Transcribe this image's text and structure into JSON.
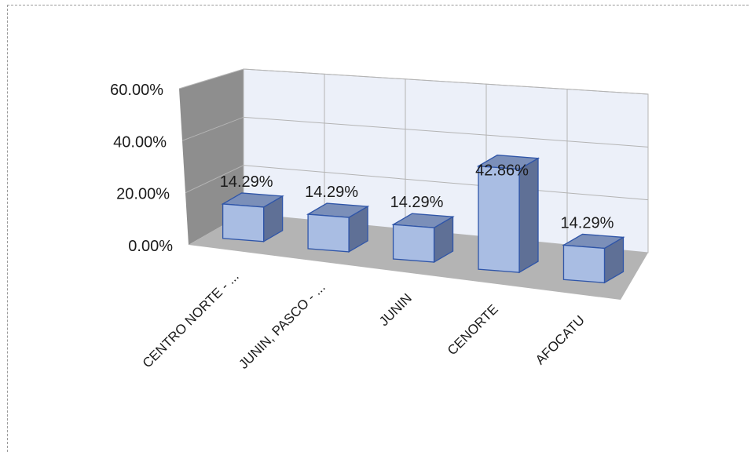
{
  "chart_data": {
    "type": "bar",
    "style": "3d-column",
    "categories": [
      "CENTRO NORTE - ...",
      "JUNIN, PASCO - ...",
      "JUNIN",
      "CENORTE",
      "AFOCATU"
    ],
    "values": [
      14.29,
      14.29,
      14.29,
      42.86,
      14.29
    ],
    "data_labels": [
      "14.29%",
      "14.29%",
      "14.29%",
      "42.86%",
      "14.29%"
    ],
    "y_ticks": [
      "0.00%",
      "20.00%",
      "40.00%",
      "60.00%"
    ],
    "ylim": [
      0,
      60
    ],
    "grid": true,
    "legend": "none",
    "colors": {
      "bar_front": "#a9bde3",
      "bar_top": "#7b8fb9",
      "bar_side": "#5f7096",
      "bar_edge": "#2f55a8",
      "back_wall": "#ecf0f9",
      "side_wall": "#8e8e8e",
      "floor": "#b4b4b4",
      "gridline": "#b4b4b4"
    }
  }
}
